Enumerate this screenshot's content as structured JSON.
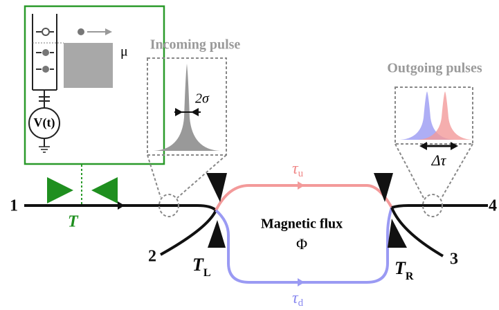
{
  "reservoir": {
    "chemical_potential": "μ",
    "source": "V(t)"
  },
  "incoming": {
    "title": "Incoming pulse",
    "width": "2σ"
  },
  "outgoing": {
    "title": "Outgoing pulses",
    "delay": "Δτ"
  },
  "ports": [
    "1",
    "2",
    "3",
    "4"
  ],
  "transmission": {
    "symbol": "T"
  },
  "left_splitter": {
    "symbol": "T",
    "sub": "L"
  },
  "right_splitter": {
    "symbol": "T",
    "sub": "R"
  },
  "upper_arm": {
    "symbol": "τ",
    "sub": "u"
  },
  "lower_arm": {
    "symbol": "τ",
    "sub": "d"
  },
  "center": {
    "label": "Magnetic flux",
    "symbol": "Φ"
  }
}
